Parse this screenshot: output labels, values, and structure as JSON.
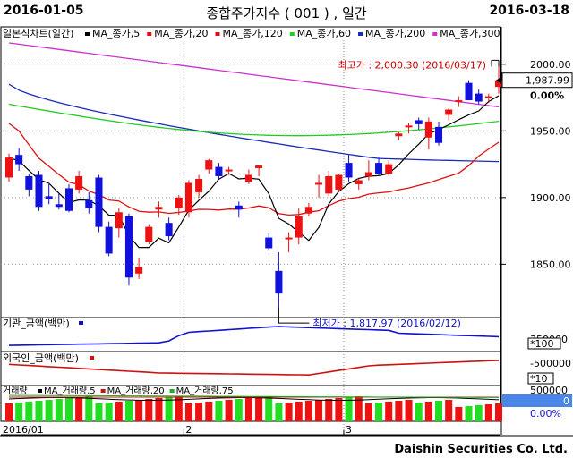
{
  "header": {
    "start_date": "2016-01-05",
    "end_date": "2016-03-18",
    "title": "종합주가지수 ( 001 ) , 일간"
  },
  "footer": {
    "company": "Daishin Securities Co. Ltd."
  },
  "colors": {
    "up": "#ee1111",
    "down": "#1111dd",
    "ma5": "#000000",
    "ma20": "#dd1111",
    "ma120": "#dd1111",
    "ma60": "#22cc22",
    "ma200": "#1a2bb8",
    "ma300": "#cc33cc",
    "vol_up": "#ee1111",
    "vol_down": "#22dd22"
  },
  "chart_data": [
    {
      "type": "candlestick",
      "title": "일본식차트(일간)",
      "legend": [
        {
          "label": "MA_종가,5",
          "key": "ma5"
        },
        {
          "label": "MA_종가,20",
          "key": "ma20"
        },
        {
          "label": "MA_종가,120",
          "key": "ma120"
        },
        {
          "label": "MA_종가,60",
          "key": "ma60"
        },
        {
          "label": "MA_종가,200",
          "key": "ma200"
        },
        {
          "label": "MA_종가,300",
          "key": "ma300"
        }
      ],
      "yticks": [
        "2000.00",
        "1950.00",
        "1900.00",
        "1850.00"
      ],
      "ylim": [
        1812,
        2020
      ],
      "last_value": "1,987.99",
      "change_pct": "0.00%",
      "high_annotation": "최고가 : 2,000.30 (2016/03/17)",
      "low_annotation": "최저가 : 1,817.97 (2016/02/12)",
      "x_labels": [
        {
          "label": "2016/01",
          "index": 0
        },
        {
          "label": "2",
          "index": 18
        },
        {
          "label": "3",
          "index": 34
        }
      ],
      "candles": [
        {
          "o": 1915,
          "h": 1933,
          "l": 1912,
          "c": 1930
        },
        {
          "o": 1932,
          "h": 1937,
          "l": 1920,
          "c": 1925
        },
        {
          "o": 1916,
          "h": 1918,
          "l": 1901,
          "c": 1906
        },
        {
          "o": 1917,
          "h": 1920,
          "l": 1890,
          "c": 1893
        },
        {
          "o": 1901,
          "h": 1910,
          "l": 1895,
          "c": 1899
        },
        {
          "o": 1895,
          "h": 1903,
          "l": 1891,
          "c": 1893
        },
        {
          "o": 1907,
          "h": 1910,
          "l": 1889,
          "c": 1890
        },
        {
          "o": 1906,
          "h": 1920,
          "l": 1903,
          "c": 1916
        },
        {
          "o": 1898,
          "h": 1904,
          "l": 1888,
          "c": 1892
        },
        {
          "o": 1915,
          "h": 1917,
          "l": 1874,
          "c": 1878
        },
        {
          "o": 1878,
          "h": 1882,
          "l": 1856,
          "c": 1858
        },
        {
          "o": 1877,
          "h": 1892,
          "l": 1870,
          "c": 1889
        },
        {
          "o": 1886,
          "h": 1888,
          "l": 1834,
          "c": 1840
        },
        {
          "o": 1843,
          "h": 1855,
          "l": 1839,
          "c": 1848
        },
        {
          "o": 1867,
          "h": 1880,
          "l": 1865,
          "c": 1878
        },
        {
          "o": 1891,
          "h": 1897,
          "l": 1885,
          "c": 1893
        },
        {
          "o": 1881,
          "h": 1885,
          "l": 1868,
          "c": 1871
        },
        {
          "o": 1892,
          "h": 1902,
          "l": 1887,
          "c": 1900
        },
        {
          "o": 1889,
          "h": 1913,
          "l": 1885,
          "c": 1911
        },
        {
          "o": 1904,
          "h": 1917,
          "l": 1900,
          "c": 1914
        },
        {
          "o": 1921,
          "h": 1929,
          "l": 1918,
          "c": 1928
        },
        {
          "o": 1923,
          "h": 1926,
          "l": 1914,
          "c": 1916
        },
        {
          "o": 1920,
          "h": 1923,
          "l": 1917,
          "c": 1921
        },
        {
          "o": 1894,
          "h": 1897,
          "l": 1885,
          "c": 1891
        },
        {
          "o": 1912,
          "h": 1921,
          "l": 1910,
          "c": 1917
        },
        {
          "o": 1922,
          "h": 1924,
          "l": 1916,
          "c": 1924
        },
        {
          "o": 1870,
          "h": 1873,
          "l": 1860,
          "c": 1862
        },
        {
          "o": 1845,
          "h": 1859,
          "l": 1818,
          "c": 1828
        },
        {
          "o": 1870,
          "h": 1874,
          "l": 1859,
          "c": 1870
        },
        {
          "o": 1870,
          "h": 1892,
          "l": 1865,
          "c": 1886
        },
        {
          "o": 1888,
          "h": 1896,
          "l": 1886,
          "c": 1893
        },
        {
          "o": 1910,
          "h": 1917,
          "l": 1900,
          "c": 1911
        },
        {
          "o": 1903,
          "h": 1920,
          "l": 1901,
          "c": 1916
        },
        {
          "o": 1906,
          "h": 1918,
          "l": 1904,
          "c": 1917
        },
        {
          "o": 1926,
          "h": 1932,
          "l": 1912,
          "c": 1915
        },
        {
          "o": 1910,
          "h": 1914,
          "l": 1906,
          "c": 1913
        },
        {
          "o": 1916,
          "h": 1928,
          "l": 1913,
          "c": 1919
        },
        {
          "o": 1926,
          "h": 1930,
          "l": 1916,
          "c": 1918
        },
        {
          "o": 1918,
          "h": 1928,
          "l": 1916,
          "c": 1925
        },
        {
          "o": 1946,
          "h": 1949,
          "l": 1943,
          "c": 1948
        },
        {
          "o": 1953,
          "h": 1956,
          "l": 1948,
          "c": 1954
        },
        {
          "o": 1958,
          "h": 1960,
          "l": 1951,
          "c": 1955
        },
        {
          "o": 1945,
          "h": 1960,
          "l": 1936,
          "c": 1957
        },
        {
          "o": 1953,
          "h": 1957,
          "l": 1939,
          "c": 1941
        },
        {
          "o": 1962,
          "h": 1967,
          "l": 1958,
          "c": 1966
        },
        {
          "o": 1972,
          "h": 1976,
          "l": 1968,
          "c": 1973
        },
        {
          "o": 1986,
          "h": 1988,
          "l": 1973,
          "c": 1973
        },
        {
          "o": 1978,
          "h": 1981,
          "l": 1970,
          "c": 1972
        },
        {
          "o": 1975,
          "h": 1978,
          "l": 1971,
          "c": 1976
        },
        {
          "o": 1983,
          "h": 2000.3,
          "l": 1978,
          "c": 1988
        }
      ]
    },
    {
      "type": "line",
      "title": "기관_금액(백만)",
      "value_label": "350000",
      "scale_label": "*100",
      "series_key": "institutional"
    },
    {
      "type": "line",
      "title": "외국인_금액(백만)",
      "value_label": "-500000",
      "scale_label": "*10",
      "series_key": "foreign"
    },
    {
      "type": "bar",
      "title": "거래량",
      "legend": [
        {
          "label": "MA_거래량,5",
          "key": "ma5"
        },
        {
          "label": "MA_거래량,20",
          "key": "ma20"
        },
        {
          "label": "MA_거래량,75",
          "key": "ma75"
        }
      ],
      "value_label": "500000",
      "current_value": "0",
      "change_pct": "0.00%"
    }
  ]
}
